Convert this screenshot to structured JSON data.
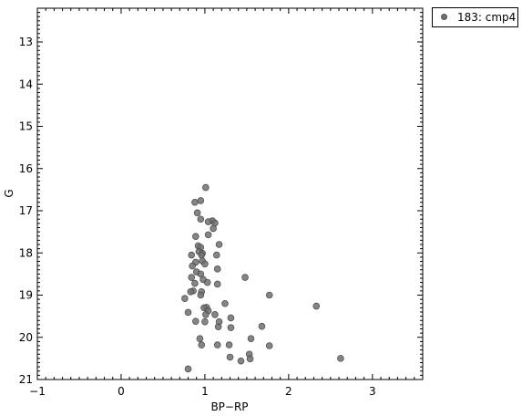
{
  "chart_data": {
    "type": "scatter",
    "title": "",
    "xlabel": "BP−RP",
    "ylabel": "G",
    "xlim": [
      -1,
      3.6
    ],
    "ylim": [
      21,
      12.2
    ],
    "y_inverted": true,
    "x_ticks": [
      "−1",
      "0",
      "1",
      "2",
      "3"
    ],
    "y_ticks": [
      "13",
      "14",
      "15",
      "16",
      "17",
      "18",
      "19",
      "20",
      "21"
    ],
    "x_tick_values": [
      -1,
      0,
      1,
      2,
      3
    ],
    "y_tick_values": [
      13,
      14,
      15,
      16,
      17,
      18,
      19,
      20,
      21
    ],
    "grid": false,
    "legend_position": "outside-top-right",
    "series": [
      {
        "name": "183: cmp4",
        "color": "#707070",
        "points": [
          [
            1.01,
            16.45
          ],
          [
            0.88,
            16.8
          ],
          [
            0.95,
            16.76
          ],
          [
            0.91,
            17.05
          ],
          [
            1.09,
            17.24
          ],
          [
            1.04,
            17.26
          ],
          [
            1.12,
            17.29
          ],
          [
            0.95,
            17.2
          ],
          [
            1.1,
            17.42
          ],
          [
            1.04,
            17.57
          ],
          [
            0.89,
            17.61
          ],
          [
            1.17,
            17.8
          ],
          [
            0.92,
            17.83
          ],
          [
            0.95,
            17.87
          ],
          [
            0.93,
            17.97
          ],
          [
            0.97,
            18.01
          ],
          [
            0.96,
            18.05
          ],
          [
            0.84,
            18.05
          ],
          [
            1.14,
            18.05
          ],
          [
            0.89,
            18.22
          ],
          [
            0.97,
            18.19
          ],
          [
            1.0,
            18.26
          ],
          [
            0.85,
            18.31
          ],
          [
            1.15,
            18.38
          ],
          [
            0.9,
            18.45
          ],
          [
            0.95,
            18.5
          ],
          [
            1.48,
            18.58
          ],
          [
            0.84,
            18.58
          ],
          [
            0.98,
            18.63
          ],
          [
            1.03,
            18.7
          ],
          [
            0.88,
            18.72
          ],
          [
            1.15,
            18.74
          ],
          [
            0.86,
            18.9
          ],
          [
            0.83,
            18.92
          ],
          [
            0.96,
            18.92
          ],
          [
            0.95,
            19.0
          ],
          [
            1.77,
            19.0
          ],
          [
            0.76,
            19.08
          ],
          [
            1.24,
            19.2
          ],
          [
            2.33,
            19.26
          ],
          [
            1.02,
            19.29
          ],
          [
            0.99,
            19.3
          ],
          [
            1.04,
            19.37
          ],
          [
            0.8,
            19.41
          ],
          [
            1.01,
            19.46
          ],
          [
            1.12,
            19.46
          ],
          [
            1.31,
            19.54
          ],
          [
            0.89,
            19.62
          ],
          [
            1.0,
            19.63
          ],
          [
            1.17,
            19.63
          ],
          [
            1.16,
            19.75
          ],
          [
            1.31,
            19.77
          ],
          [
            1.68,
            19.74
          ],
          [
            1.55,
            20.03
          ],
          [
            0.94,
            20.03
          ],
          [
            0.96,
            20.18
          ],
          [
            1.15,
            20.18
          ],
          [
            1.29,
            20.18
          ],
          [
            1.77,
            20.2
          ],
          [
            1.53,
            20.4
          ],
          [
            1.3,
            20.47
          ],
          [
            1.54,
            20.51
          ],
          [
            2.62,
            20.5
          ],
          [
            1.43,
            20.56
          ],
          [
            0.8,
            20.75
          ]
        ]
      }
    ]
  }
}
